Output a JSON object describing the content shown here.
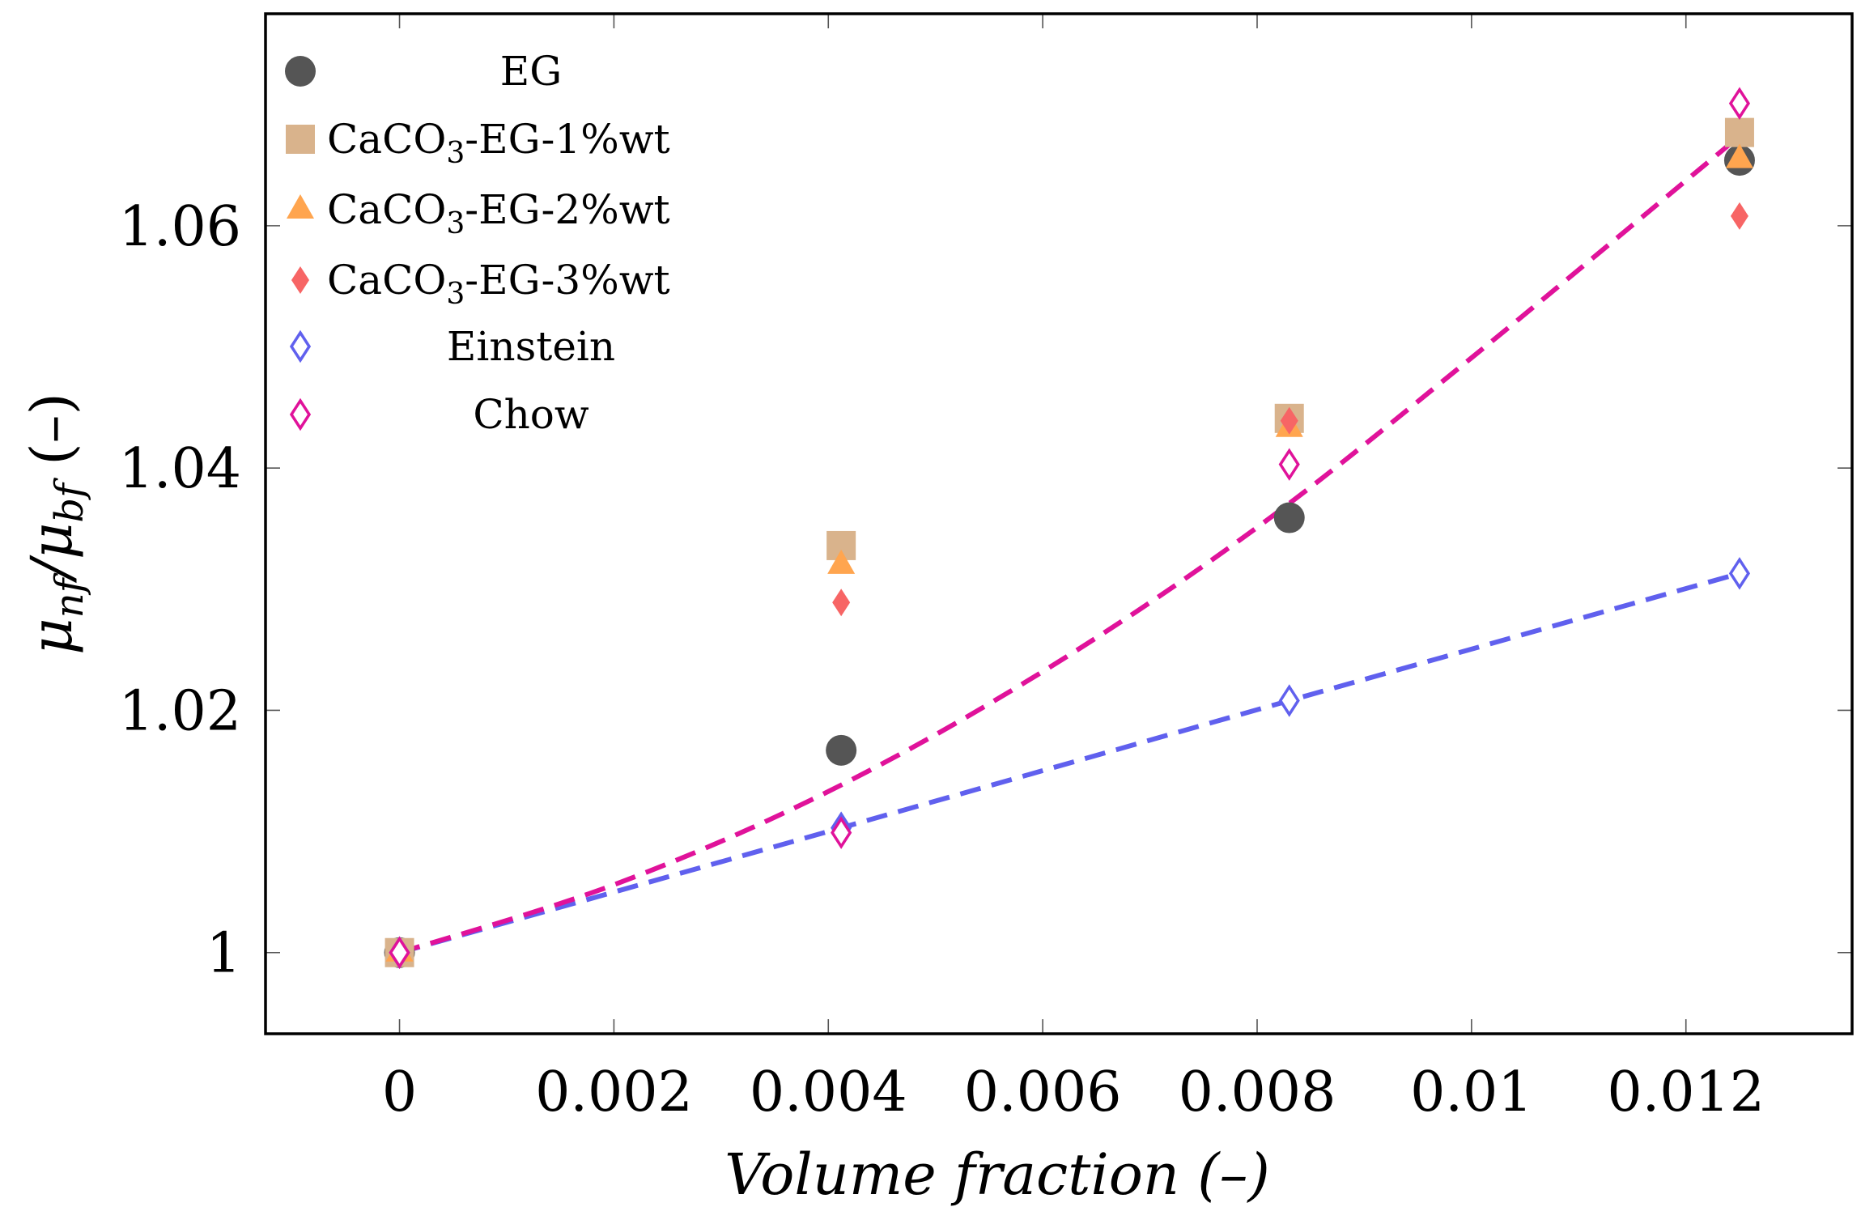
{
  "chart_data": {
    "type": "scatter",
    "title": "",
    "xlabel": "Volume fraction (–)",
    "ylabel_main": "μ",
    "ylabel_sub1": "nf",
    "ylabel_mid": "/μ",
    "ylabel_sub2": "bf",
    "ylabel_unit": " (–)",
    "xlim": [
      -0.00125,
      0.01355
    ],
    "ylim": [
      0.9933,
      1.0775
    ],
    "xticks": [
      0,
      0.002,
      0.004,
      0.006,
      0.008,
      0.01,
      0.012
    ],
    "xtick_labels": [
      "0",
      "0.002",
      "0.004",
      "0.006",
      "0.008",
      "0.01",
      "0.012"
    ],
    "yticks": [
      1.0,
      1.02,
      1.04,
      1.06
    ],
    "ytick_labels": [
      "1",
      "1.02",
      "1.04",
      "1.06"
    ],
    "x": [
      0,
      0.00412,
      0.0083,
      0.0125
    ],
    "legend_position": "top-left",
    "series": [
      {
        "name": "EG",
        "label_main": "EG",
        "label_sub": "",
        "label_rest": "",
        "marker": "circle",
        "color": "#555555",
        "fill": true,
        "values": [
          1.0,
          1.0167,
          1.0359,
          1.0654
        ]
      },
      {
        "name": "CaCO3-EG-1%wt",
        "label_main": "CaCO",
        "label_sub": "3",
        "label_rest": "-EG-1%wt",
        "marker": "square",
        "color": "#d9b38c",
        "fill": true,
        "values": [
          1.0,
          1.0336,
          1.0441,
          1.0677
        ]
      },
      {
        "name": "CaCO3-EG-2%wt",
        "label_main": "CaCO",
        "label_sub": "3",
        "label_rest": "-EG-2%wt",
        "marker": "triangle",
        "color": "#ffa54f",
        "fill": true,
        "values": [
          1.0,
          1.032,
          1.0433,
          1.0655
        ]
      },
      {
        "name": "CaCO3-EG-3%wt",
        "label_main": "CaCO",
        "label_sub": "3",
        "label_rest": "-EG-3%wt",
        "marker": "diamond",
        "color": "#f76565",
        "fill": true,
        "values": [
          1.0,
          1.0289,
          1.0439,
          1.0608
        ]
      },
      {
        "name": "Einstein",
        "label_main": "Einstein",
        "label_sub": "",
        "label_rest": "",
        "marker": "diamond",
        "color": "#6060ee",
        "fill": false,
        "values": [
          1.0,
          1.0103,
          1.0208,
          1.0313
        ]
      },
      {
        "name": "Chow",
        "label_main": "Chow",
        "label_sub": "",
        "label_rest": "",
        "marker": "diamond",
        "color": "#e0129a",
        "fill": false,
        "values": [
          1.0,
          1.0099,
          1.0403,
          1.0701
        ]
      }
    ],
    "fit_lines": [
      {
        "name": "Einstein fit",
        "color": "#6060ee",
        "style": "dashed",
        "x": [
          0,
          0.00412,
          0.0083,
          0.0125
        ],
        "y": [
          1.0,
          1.0103,
          1.0208,
          1.0313
        ]
      },
      {
        "name": "Chow fit",
        "color": "#e0129a",
        "style": "dashed",
        "x": [
          0,
          0.002,
          0.004,
          0.006,
          0.008,
          0.01,
          0.0125
        ],
        "y": [
          1.0,
          1.0056,
          1.0133,
          1.0232,
          1.0351,
          1.0491,
          1.0674
        ]
      }
    ]
  }
}
